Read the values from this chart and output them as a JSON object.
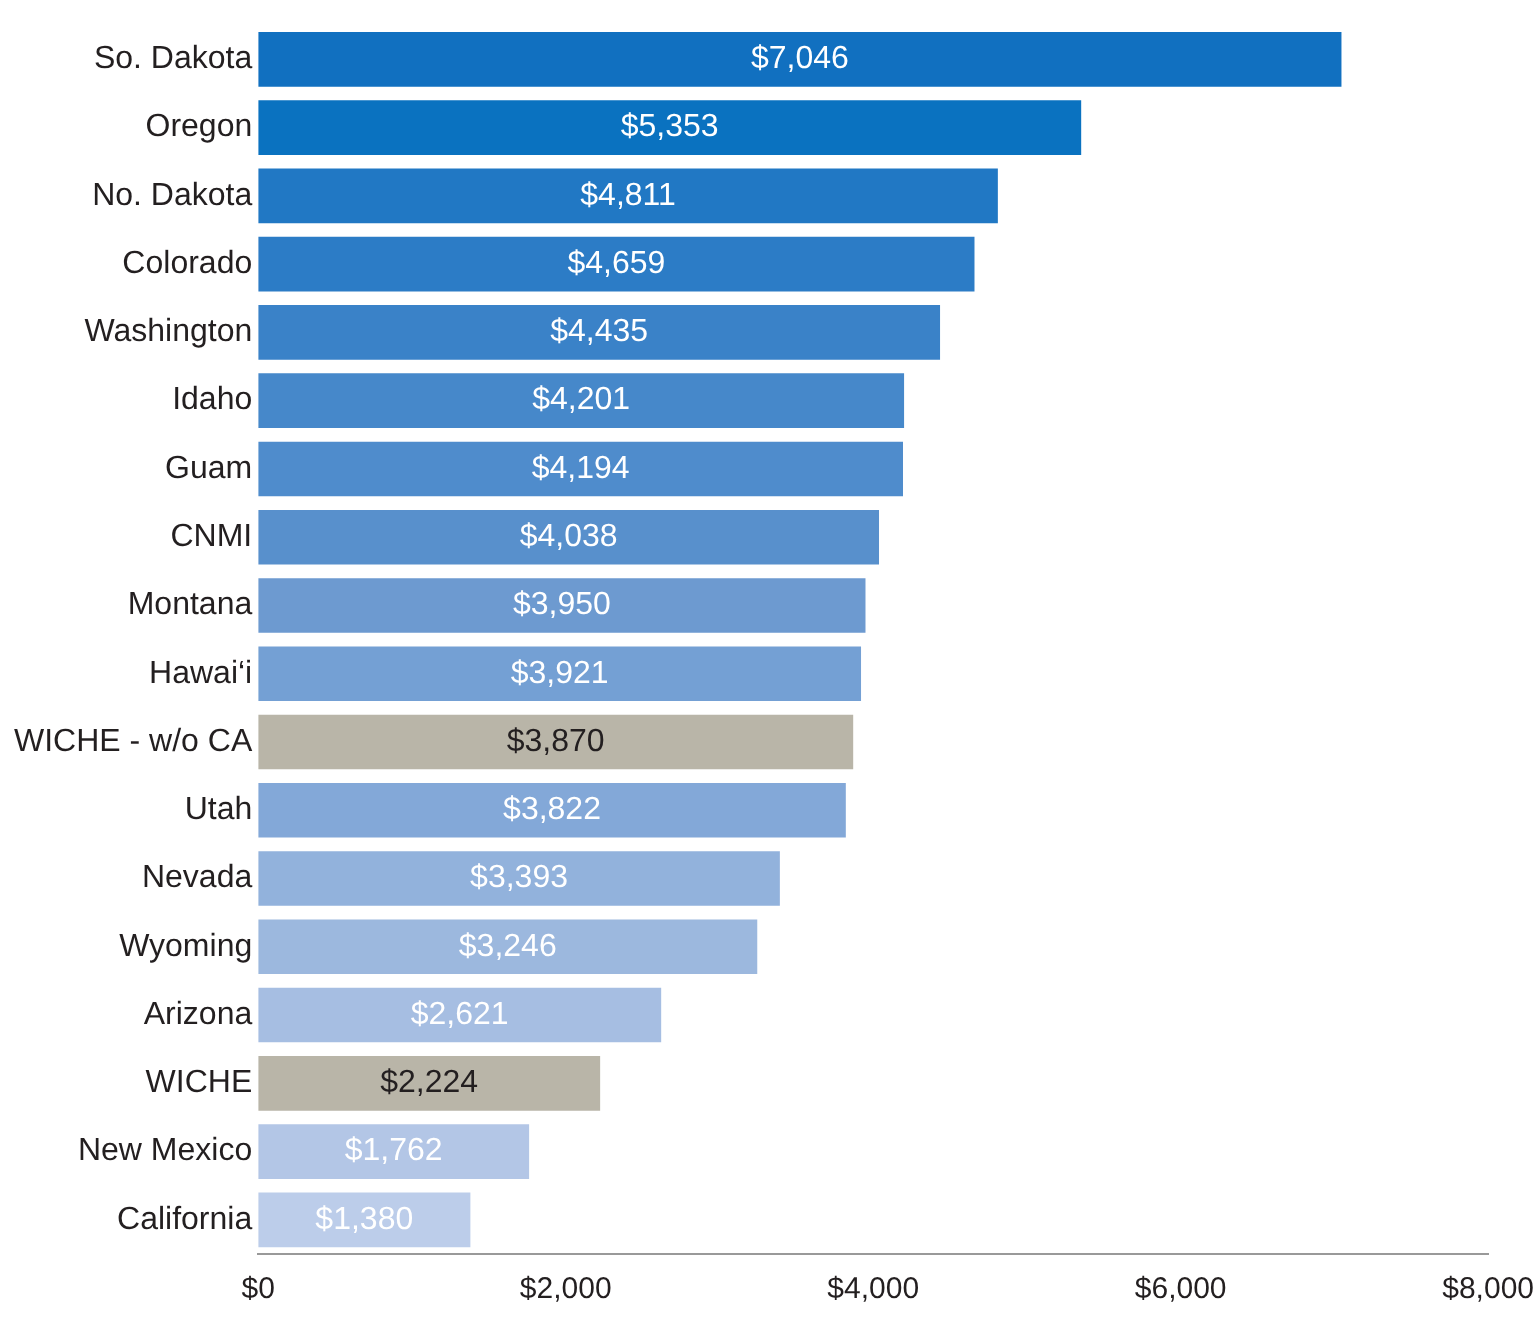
{
  "chart_data": {
    "type": "bar",
    "orientation": "horizontal",
    "categories": [
      "So. Dakota",
      "Oregon",
      "No. Dakota",
      "Colorado",
      "Washington",
      "Idaho",
      "Guam",
      "CNMI",
      "Montana",
      "Hawai‘i",
      "WICHE - w/o CA",
      "Utah",
      "Nevada",
      "Wyoming",
      "Arizona",
      "WICHE",
      "New Mexico",
      "California"
    ],
    "values": [
      7046,
      5353,
      4811,
      4659,
      4435,
      4201,
      4194,
      4038,
      3950,
      3921,
      3870,
      3822,
      3393,
      3246,
      2621,
      2224,
      1762,
      1380
    ],
    "colors": [
      "#1170c0",
      "#0a72c0",
      "#2178c4",
      "#2c7cc6",
      "#3a82c8",
      "#4688ca",
      "#4f8ccc",
      "#5890cc",
      "#6d9ad0",
      "#74a0d4",
      "#b9b5a8",
      "#83a8d8",
      "#92b2dc",
      "#9cb8de",
      "#a6bee2",
      "#b9b5a8",
      "#b3c6e6",
      "#bccdea"
    ],
    "value_labels": [
      "$7,046",
      "$5,353",
      "$4,811",
      "$4,659",
      "$4,435",
      "$4,201",
      "$4,194",
      "$4,038",
      "$3,950",
      "$3,921",
      "$3,870",
      "$3,822",
      "$3,393",
      "$3,246",
      "$2,621",
      "$2,224",
      "$1,762",
      "$1,380"
    ],
    "xlim": [
      0,
      8000
    ],
    "xticks": [
      {
        "value": 0,
        "label": "$0"
      },
      {
        "value": 2000,
        "label": "$2,000"
      },
      {
        "value": 4000,
        "label": "$4,000"
      },
      {
        "value": 6000,
        "label": "$6,000"
      },
      {
        "value": 8000,
        "label": "$8,000"
      }
    ],
    "grid": false,
    "legend": false
  }
}
